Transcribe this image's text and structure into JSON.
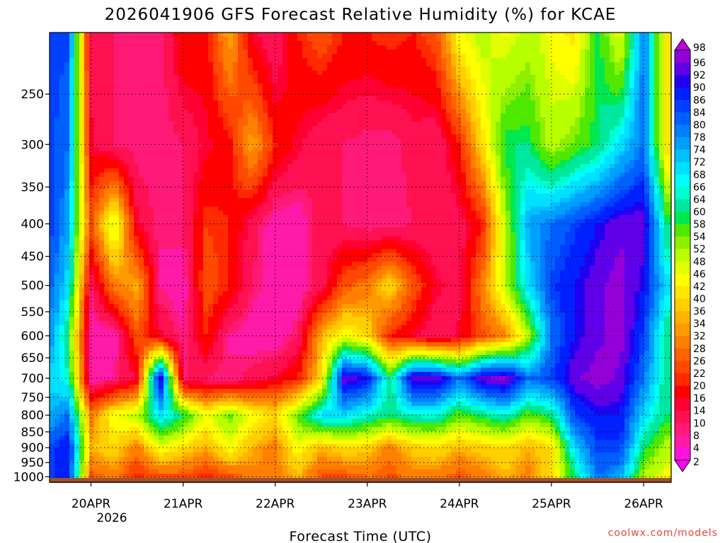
{
  "chart_data": {
    "type": "heatmap",
    "title": "2026041906 GFS Forecast Relative Humidity (%) for KCAE",
    "xlabel": "Forecast Time (UTC)",
    "ylabel": "",
    "credit": "coolwx.com/models",
    "x_ticks": [
      "20APR",
      "21APR",
      "22APR",
      "23APR",
      "24APR",
      "25APR",
      "26APR"
    ],
    "x_tick_year": "2026",
    "x_range_hours": [
      -10.8,
      151.2
    ],
    "y_ticks": [
      250,
      300,
      350,
      400,
      450,
      500,
      550,
      600,
      650,
      700,
      750,
      800,
      850,
      900,
      950,
      1000
    ],
    "y_range_hpa": [
      200,
      1020
    ],
    "y_scale": "log-pressure",
    "grid": true,
    "colorbar_levels": [
      2,
      4,
      8,
      10,
      14,
      16,
      20,
      22,
      26,
      28,
      32,
      34,
      36,
      40,
      42,
      46,
      48,
      52,
      54,
      58,
      60,
      64,
      66,
      68,
      72,
      74,
      78,
      80,
      84,
      86,
      90,
      92,
      96,
      98
    ],
    "colorbar_colors": [
      "#ff00ff",
      "#ff11dd",
      "#ff1aa8",
      "#ff1a78",
      "#ff1050",
      "#ff0030",
      "#ff0000",
      "#ff2a00",
      "#ff4800",
      "#ff6200",
      "#ff7f00",
      "#ff9a00",
      "#ffb400",
      "#ffcf00",
      "#ffe600",
      "#ffff00",
      "#e0ff00",
      "#b8ff00",
      "#8cf000",
      "#4fe800",
      "#00e850",
      "#00e8a0",
      "#00ffd0",
      "#00ffff",
      "#00e0ff",
      "#00c0ff",
      "#00a0ff",
      "#0080ff",
      "#0060ff",
      "#0040ff",
      "#0020ff",
      "#2000f0",
      "#6000e8",
      "#9400d8",
      "#c000e0"
    ],
    "rh_grid_hours": [
      -10,
      -6,
      0,
      6,
      12,
      18,
      24,
      30,
      36,
      42,
      48,
      54,
      60,
      66,
      72,
      78,
      84,
      90,
      96,
      102,
      108,
      114,
      120,
      126,
      132,
      138,
      144,
      150
    ],
    "rh_grid_levels": [
      200,
      300,
      400,
      500,
      600,
      700,
      800,
      900,
      1000
    ],
    "rh_grid_values": [
      [
        85,
        85,
        12,
        10,
        10,
        8,
        20,
        18,
        35,
        15,
        10,
        20,
        25,
        20,
        20,
        22,
        20,
        25,
        45,
        50,
        45,
        50,
        45,
        40,
        60,
        45,
        80,
        40
      ],
      [
        85,
        80,
        15,
        10,
        8,
        8,
        10,
        15,
        18,
        35,
        20,
        15,
        10,
        10,
        8,
        8,
        12,
        10,
        20,
        40,
        60,
        60,
        50,
        55,
        60,
        70,
        80,
        40
      ],
      [
        85,
        75,
        25,
        50,
        15,
        8,
        10,
        22,
        20,
        12,
        5,
        5,
        12,
        10,
        8,
        8,
        10,
        10,
        12,
        20,
        50,
        75,
        80,
        85,
        90,
        95,
        95,
        60
      ],
      [
        80,
        70,
        10,
        30,
        35,
        8,
        5,
        25,
        20,
        10,
        5,
        5,
        12,
        25,
        30,
        40,
        25,
        15,
        12,
        30,
        50,
        70,
        85,
        90,
        95,
        98,
        90,
        70
      ],
      [
        75,
        60,
        5,
        5,
        25,
        15,
        8,
        20,
        8,
        5,
        5,
        10,
        35,
        45,
        40,
        20,
        15,
        10,
        15,
        25,
        30,
        50,
        80,
        90,
        95,
        98,
        85,
        60
      ],
      [
        70,
        65,
        5,
        8,
        15,
        95,
        10,
        10,
        8,
        12,
        15,
        20,
        40,
        95,
        90,
        60,
        95,
        95,
        80,
        95,
        98,
        80,
        85,
        95,
        98,
        95,
        80,
        60
      ],
      [
        75,
        80,
        30,
        45,
        50,
        70,
        60,
        45,
        55,
        45,
        40,
        55,
        70,
        70,
        65,
        60,
        65,
        65,
        55,
        60,
        65,
        55,
        60,
        85,
        90,
        90,
        70,
        60
      ],
      [
        85,
        90,
        35,
        40,
        30,
        45,
        40,
        35,
        45,
        35,
        30,
        45,
        35,
        40,
        38,
        30,
        38,
        40,
        35,
        38,
        40,
        35,
        40,
        70,
        85,
        85,
        60,
        50
      ],
      [
        85,
        90,
        25,
        30,
        20,
        25,
        25,
        20,
        25,
        30,
        30,
        35,
        25,
        25,
        28,
        25,
        30,
        30,
        25,
        30,
        35,
        30,
        40,
        60,
        80,
        75,
        50,
        45
      ]
    ]
  }
}
